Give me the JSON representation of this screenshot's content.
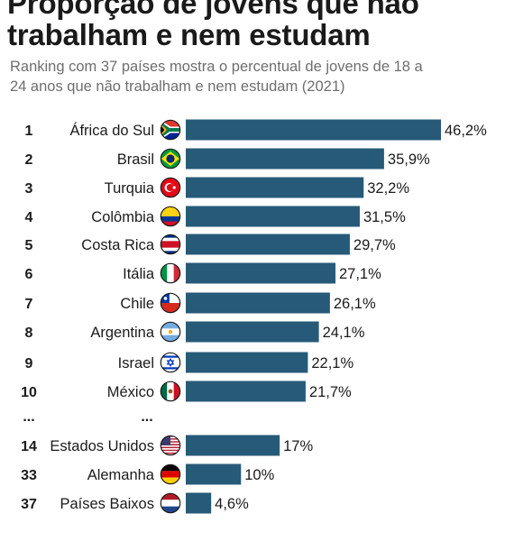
{
  "header": {
    "title": "Proporção de jovens que não\ntrabalham e nem estudam",
    "subtitle": "Ranking com 37 países mostra o percentual de jovens de 18 a\n24 anos que não trabalham e nem estudam (2021)"
  },
  "colors": {
    "bar": "#265a78",
    "text": "#1b1b1b",
    "subtitle": "#6e6e6e"
  },
  "chart_data": {
    "type": "bar",
    "orientation": "horizontal",
    "title": "Proporção de jovens que não trabalham e nem estudam",
    "subtitle": "Ranking com 37 países mostra o percentual de jovens de 18 a 24 anos que não trabalham e nem estudam (2021)",
    "xlabel": "",
    "ylabel": "",
    "xlim": [
      0,
      46.2
    ],
    "grid": false,
    "legend": "none",
    "gap_marker": {
      "rank": "...",
      "label": "..."
    },
    "rows": [
      {
        "rank": "1",
        "category": "África do Sul",
        "value": 46.2,
        "label": "46,2%",
        "flag": "south-africa-flag-icon"
      },
      {
        "rank": "2",
        "category": "Brasil",
        "value": 35.9,
        "label": "35,9%",
        "flag": "brazil-flag-icon"
      },
      {
        "rank": "3",
        "category": "Turquia",
        "value": 32.2,
        "label": "32,2%",
        "flag": "turkey-flag-icon"
      },
      {
        "rank": "4",
        "category": "Colômbia",
        "value": 31.5,
        "label": "31,5%",
        "flag": "colombia-flag-icon"
      },
      {
        "rank": "5",
        "category": "Costa Rica",
        "value": 29.7,
        "label": "29,7%",
        "flag": "costa-rica-flag-icon"
      },
      {
        "rank": "6",
        "category": "Itália",
        "value": 27.1,
        "label": "27,1%",
        "flag": "italy-flag-icon"
      },
      {
        "rank": "7",
        "category": "Chile",
        "value": 26.1,
        "label": "26,1%",
        "flag": "chile-flag-icon"
      },
      {
        "rank": "8",
        "category": "Argentina",
        "value": 24.1,
        "label": "24,1%",
        "flag": "argentina-flag-icon"
      },
      {
        "rank": "9",
        "category": "Israel",
        "value": 22.1,
        "label": "22,1%",
        "flag": "israel-flag-icon"
      },
      {
        "rank": "10",
        "category": "México",
        "value": 21.7,
        "label": "21,7%",
        "flag": "mexico-flag-icon"
      },
      {
        "rank": "14",
        "category": "Estados Unidos",
        "value": 17,
        "label": "17%",
        "flag": "usa-flag-icon"
      },
      {
        "rank": "33",
        "category": "Alemanha",
        "value": 10,
        "label": "10%",
        "flag": "germany-flag-icon"
      },
      {
        "rank": "37",
        "category": "Países Baixos",
        "value": 4.6,
        "label": "4,6%",
        "flag": "netherlands-flag-icon"
      }
    ]
  }
}
